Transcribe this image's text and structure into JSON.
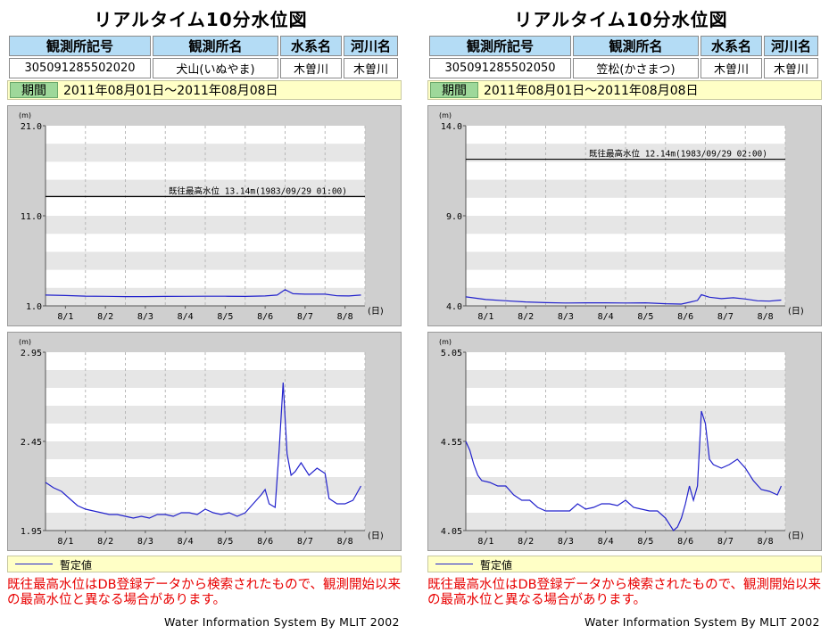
{
  "panels": [
    {
      "title": "リアルタイム10分水位図",
      "headers": [
        "観測所記号",
        "観測所名",
        "水系名",
        "河川名"
      ],
      "values": [
        "305091285502020",
        "犬山(いぬやま)",
        "木曽川",
        "木曽川"
      ],
      "period_label": "期間",
      "period": "2011年08月01日～2011年08月08日",
      "legend": "暫定値",
      "note": "既往最高水位はDB登録データから検索されたもので、観測開始以来の最高水位と異なる場合があります。",
      "footer": "Water Information System By MLIT 2002"
    },
    {
      "title": "リアルタイム10分水位図",
      "headers": [
        "観測所記号",
        "観測所名",
        "水系名",
        "河川名"
      ],
      "values": [
        "305091285502050",
        "笠松(かさまつ)",
        "木曽川",
        "木曽川"
      ],
      "period_label": "期間",
      "period": "2011年08月01日～2011年08月08日",
      "legend": "暫定値",
      "note": "既往最高水位はDB登録データから検索されたもので、観測開始以来の最高水位と異なる場合があります。",
      "footer": "Water Information System By MLIT 2002"
    }
  ],
  "chart_data": [
    {
      "type": "line",
      "station": "犬山(いぬやま)",
      "view": "overall",
      "ylabel": "(m)",
      "xlabel": "(日)",
      "ylim": [
        1.0,
        21.0
      ],
      "yticks": [
        "21.0",
        "11.0",
        "1.0"
      ],
      "categories": [
        "8/1",
        "8/2",
        "8/3",
        "8/4",
        "8/5",
        "8/6",
        "8/7",
        "8/8"
      ],
      "reference_label": "既往最高水位 13.14m(1983/09/29 01:00)",
      "reference_value": 13.14,
      "color": "#2222cc",
      "x": [
        0.0,
        0.5,
        1.0,
        1.5,
        2.0,
        2.5,
        3.0,
        3.5,
        4.0,
        4.5,
        5.0,
        5.5,
        5.8,
        6.0,
        6.2,
        6.5,
        7.0,
        7.3,
        7.6,
        7.9
      ],
      "values": [
        2.2,
        2.15,
        2.08,
        2.06,
        2.03,
        2.03,
        2.05,
        2.06,
        2.07,
        2.07,
        2.05,
        2.1,
        2.2,
        2.8,
        2.35,
        2.3,
        2.3,
        2.12,
        2.1,
        2.2
      ]
    },
    {
      "type": "line",
      "station": "犬山(いぬやま)",
      "view": "detail",
      "ylabel": "(m)",
      "xlabel": "(日)",
      "ylim": [
        1.95,
        2.95
      ],
      "yticks": [
        "2.95",
        "2.45",
        "1.95"
      ],
      "categories": [
        "8/1",
        "8/2",
        "8/3",
        "8/4",
        "8/5",
        "8/6",
        "8/7",
        "8/8"
      ],
      "color": "#2222cc",
      "x": [
        0.0,
        0.2,
        0.4,
        0.6,
        0.8,
        1.0,
        1.2,
        1.4,
        1.6,
        1.8,
        2.0,
        2.2,
        2.4,
        2.6,
        2.8,
        3.0,
        3.2,
        3.4,
        3.6,
        3.8,
        4.0,
        4.2,
        4.4,
        4.6,
        4.8,
        5.0,
        5.2,
        5.4,
        5.5,
        5.6,
        5.75,
        5.85,
        5.95,
        6.05,
        6.15,
        6.25,
        6.4,
        6.6,
        6.8,
        7.0,
        7.1,
        7.3,
        7.5,
        7.7,
        7.9
      ],
      "values": [
        2.22,
        2.19,
        2.17,
        2.13,
        2.09,
        2.07,
        2.06,
        2.05,
        2.04,
        2.04,
        2.03,
        2.02,
        2.03,
        2.02,
        2.04,
        2.04,
        2.03,
        2.05,
        2.05,
        2.04,
        2.07,
        2.05,
        2.04,
        2.05,
        2.03,
        2.05,
        2.1,
        2.15,
        2.18,
        2.1,
        2.08,
        2.4,
        2.78,
        2.38,
        2.26,
        2.28,
        2.33,
        2.26,
        2.3,
        2.27,
        2.13,
        2.1,
        2.1,
        2.12,
        2.2
      ]
    },
    {
      "type": "line",
      "station": "笠松(かさまつ)",
      "view": "overall",
      "ylabel": "(m)",
      "xlabel": "(日)",
      "ylim": [
        4.0,
        14.0
      ],
      "yticks": [
        "14.0",
        "9.0",
        "4.0"
      ],
      "categories": [
        "8/1",
        "8/2",
        "8/3",
        "8/4",
        "8/5",
        "8/6",
        "8/7",
        "8/8"
      ],
      "reference_label": "既往最高水位 12.14m(1983/09/29 02:00)",
      "reference_value": 12.14,
      "color": "#2222cc",
      "x": [
        0.0,
        0.5,
        1.0,
        1.5,
        2.0,
        2.5,
        3.0,
        3.5,
        4.0,
        4.5,
        5.0,
        5.4,
        5.6,
        5.8,
        5.9,
        6.1,
        6.4,
        6.7,
        7.0,
        7.3,
        7.6,
        7.9
      ],
      "values": [
        4.5,
        4.35,
        4.28,
        4.22,
        4.18,
        4.16,
        4.17,
        4.17,
        4.16,
        4.17,
        4.12,
        4.1,
        4.2,
        4.3,
        4.62,
        4.48,
        4.4,
        4.45,
        4.38,
        4.28,
        4.26,
        4.32
      ]
    },
    {
      "type": "line",
      "station": "笠松(かさまつ)",
      "view": "detail",
      "ylabel": "(m)",
      "xlabel": "(日)",
      "ylim": [
        4.05,
        5.05
      ],
      "yticks": [
        "5.05",
        "4.55",
        "4.05"
      ],
      "categories": [
        "8/1",
        "8/2",
        "8/3",
        "8/4",
        "8/5",
        "8/6",
        "8/7",
        "8/8"
      ],
      "color": "#2222cc",
      "x": [
        0.0,
        0.1,
        0.2,
        0.3,
        0.4,
        0.6,
        0.8,
        1.0,
        1.2,
        1.4,
        1.6,
        1.8,
        2.0,
        2.2,
        2.4,
        2.6,
        2.8,
        3.0,
        3.2,
        3.4,
        3.6,
        3.8,
        4.0,
        4.2,
        4.4,
        4.6,
        4.8,
        5.0,
        5.2,
        5.3,
        5.4,
        5.5,
        5.6,
        5.7,
        5.8,
        5.9,
        6.0,
        6.1,
        6.2,
        6.4,
        6.6,
        6.8,
        7.0,
        7.2,
        7.4,
        7.6,
        7.8,
        7.9
      ],
      "values": [
        4.55,
        4.5,
        4.42,
        4.36,
        4.33,
        4.32,
        4.3,
        4.3,
        4.25,
        4.22,
        4.22,
        4.18,
        4.16,
        4.16,
        4.16,
        4.16,
        4.2,
        4.17,
        4.18,
        4.2,
        4.2,
        4.19,
        4.22,
        4.18,
        4.17,
        4.16,
        4.16,
        4.12,
        4.05,
        4.07,
        4.12,
        4.2,
        4.3,
        4.22,
        4.3,
        4.72,
        4.65,
        4.45,
        4.42,
        4.4,
        4.42,
        4.45,
        4.4,
        4.33,
        4.28,
        4.27,
        4.25,
        4.3
      ]
    }
  ]
}
